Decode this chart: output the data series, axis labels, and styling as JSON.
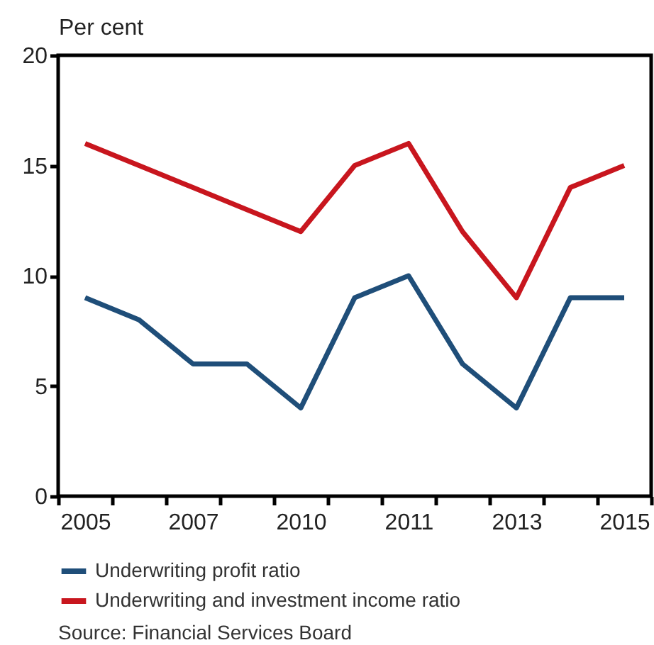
{
  "chart_data": {
    "type": "line",
    "ylabel": "Per cent",
    "categories": [
      "2005",
      null,
      "2007",
      null,
      "2010",
      null,
      "2011",
      null,
      "2013",
      null,
      "2015"
    ],
    "series": [
      {
        "name": "Underwriting profit ratio",
        "color": "#1f4e79",
        "values": [
          9,
          8,
          6,
          6,
          4,
          9,
          10,
          6,
          4,
          9,
          9
        ]
      },
      {
        "name": "Underwriting and investment income ratio",
        "color": "#c8161e",
        "values": [
          16,
          15,
          14,
          13,
          12,
          15,
          16,
          12,
          9,
          14,
          15
        ]
      }
    ],
    "ylim": [
      0,
      20
    ],
    "yticks": [
      0,
      5,
      10,
      15,
      20
    ],
    "grid": false,
    "legend": "bottom",
    "marker": "none",
    "line_style": "solid",
    "annotations": [
      "Source: Financial Services Board"
    ]
  }
}
